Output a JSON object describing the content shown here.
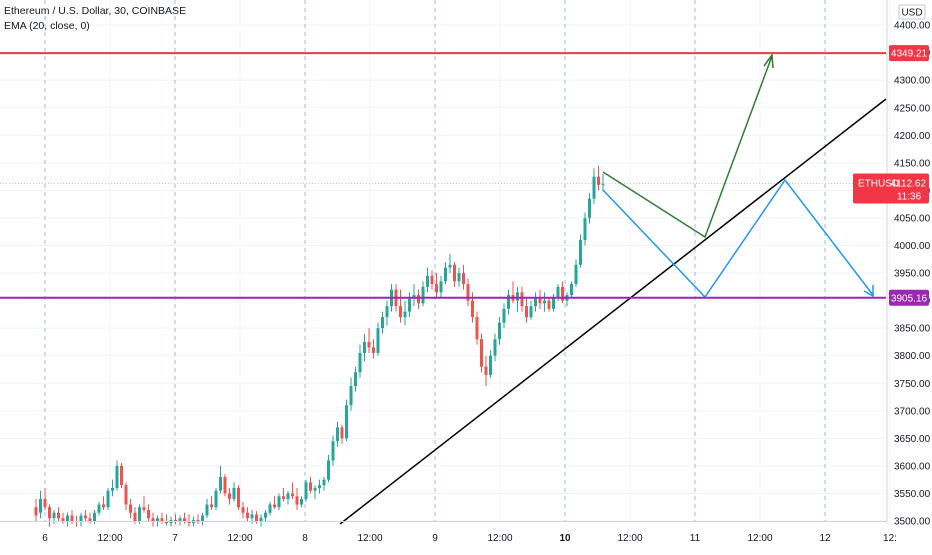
{
  "legend": {
    "symbol_line": "Ethereum / U.S. Dollar, 30, COINBASE",
    "indicator_line": "EMA (20, close, 0)"
  },
  "price_axis": {
    "currency_label": "USD",
    "ticks": [
      "4400.00",
      "4350.00",
      "4300.00",
      "4250.00",
      "4200.00",
      "4150.00",
      "4100.00",
      "4050.00",
      "4000.00",
      "3950.00",
      "3900.00",
      "3850.00",
      "3800.00",
      "3750.00",
      "3700.00",
      "3650.00",
      "3600.00",
      "3550.00",
      "3500.00"
    ]
  },
  "time_axis": {
    "ticks": [
      "6",
      "12:00",
      "7",
      "12:00",
      "8",
      "12:00",
      "9",
      "12:00",
      "10",
      "12:00",
      "11",
      "12:00",
      "12",
      "12:"
    ]
  },
  "price_tags": {
    "resistance": "4349.21",
    "support": "3905.16",
    "current_symbol": "ETHUSD",
    "current_price": "4112.62",
    "countdown": "11:36"
  },
  "colors": {
    "resistance": "#f23645",
    "support": "#9c27b0",
    "up": "#26a69a",
    "down": "#ef5350",
    "green_path": "#2e7d32",
    "blue_path": "#2196f3",
    "trendline": "#000000",
    "ema": "#ffffff"
  },
  "chart_data": {
    "type": "candlestick",
    "symbol": "Ethereum / U.S. Dollar",
    "interval": "30",
    "exchange": "COINBASE",
    "indicator": "EMA (20, close, 0)",
    "ylim": [
      3490,
      4430
    ],
    "x_ticks": [
      "6",
      "12:00",
      "7",
      "12:00",
      "8",
      "12:00",
      "9",
      "12:00",
      "10",
      "12:00",
      "11",
      "12:00",
      "12",
      "12:"
    ],
    "horizontal_lines": [
      {
        "price": 4349.21,
        "color": "#f23645"
      },
      {
        "price": 3905.16,
        "color": "#9c27b0"
      },
      {
        "price": 4112.62,
        "color": "#f23645",
        "style": "dotted"
      }
    ],
    "candles_ohlc": [
      [
        3525,
        3540,
        3500,
        3510
      ],
      [
        3515,
        3555,
        3505,
        3540
      ],
      [
        3540,
        3560,
        3520,
        3525
      ],
      [
        3525,
        3530,
        3490,
        3505
      ],
      [
        3505,
        3520,
        3495,
        3515
      ],
      [
        3515,
        3525,
        3500,
        3505
      ],
      [
        3505,
        3515,
        3495,
        3500
      ],
      [
        3500,
        3515,
        3490,
        3510
      ],
      [
        3510,
        3520,
        3495,
        3500
      ],
      [
        3500,
        3510,
        3490,
        3498
      ],
      [
        3498,
        3515,
        3490,
        3510
      ],
      [
        3510,
        3520,
        3498,
        3505
      ],
      [
        3505,
        3515,
        3495,
        3500
      ],
      [
        3500,
        3520,
        3495,
        3515
      ],
      [
        3515,
        3535,
        3510,
        3530
      ],
      [
        3530,
        3545,
        3520,
        3525
      ],
      [
        3525,
        3560,
        3520,
        3555
      ],
      [
        3555,
        3575,
        3545,
        3560
      ],
      [
        3560,
        3610,
        3555,
        3600
      ],
      [
        3600,
        3605,
        3560,
        3565
      ],
      [
        3565,
        3570,
        3520,
        3530
      ],
      [
        3530,
        3540,
        3505,
        3515
      ],
      [
        3515,
        3525,
        3495,
        3500
      ],
      [
        3500,
        3530,
        3495,
        3525
      ],
      [
        3525,
        3545,
        3515,
        3520
      ],
      [
        3520,
        3530,
        3500,
        3505
      ],
      [
        3505,
        3515,
        3490,
        3498
      ],
      [
        3498,
        3510,
        3490,
        3505
      ],
      [
        3505,
        3515,
        3495,
        3500
      ],
      [
        3500,
        3512,
        3492,
        3496
      ],
      [
        3496,
        3508,
        3490,
        3502
      ],
      [
        3502,
        3512,
        3494,
        3498
      ],
      [
        3498,
        3510,
        3492,
        3505
      ],
      [
        3505,
        3515,
        3495,
        3500
      ],
      [
        3500,
        3512,
        3490,
        3496
      ],
      [
        3496,
        3508,
        3490,
        3502
      ],
      [
        3502,
        3512,
        3495,
        3498
      ],
      [
        3498,
        3515,
        3492,
        3510
      ],
      [
        3510,
        3540,
        3505,
        3530
      ],
      [
        3530,
        3545,
        3520,
        3525
      ],
      [
        3525,
        3560,
        3520,
        3555
      ],
      [
        3555,
        3600,
        3550,
        3580
      ],
      [
        3580,
        3585,
        3545,
        3550
      ],
      [
        3550,
        3560,
        3530,
        3540
      ],
      [
        3540,
        3570,
        3535,
        3560
      ],
      [
        3560,
        3565,
        3520,
        3525
      ],
      [
        3525,
        3535,
        3505,
        3515
      ],
      [
        3515,
        3525,
        3500,
        3505
      ],
      [
        3505,
        3520,
        3495,
        3512
      ],
      [
        3512,
        3518,
        3495,
        3500
      ],
      [
        3500,
        3512,
        3490,
        3506
      ],
      [
        3506,
        3520,
        3500,
        3515
      ],
      [
        3515,
        3535,
        3510,
        3530
      ],
      [
        3530,
        3545,
        3522,
        3525
      ],
      [
        3525,
        3550,
        3520,
        3545
      ],
      [
        3545,
        3560,
        3535,
        3540
      ],
      [
        3540,
        3555,
        3530,
        3550
      ],
      [
        3550,
        3570,
        3540,
        3545
      ],
      [
        3545,
        3560,
        3520,
        3530
      ],
      [
        3530,
        3545,
        3525,
        3540
      ],
      [
        3540,
        3575,
        3535,
        3570
      ],
      [
        3570,
        3580,
        3550,
        3555
      ],
      [
        3555,
        3565,
        3540,
        3560
      ],
      [
        3560,
        3575,
        3550,
        3565
      ],
      [
        3565,
        3580,
        3555,
        3575
      ],
      [
        3575,
        3620,
        3570,
        3610
      ],
      [
        3610,
        3655,
        3600,
        3645
      ],
      [
        3645,
        3680,
        3635,
        3670
      ],
      [
        3670,
        3675,
        3640,
        3650
      ],
      [
        3650,
        3720,
        3645,
        3710
      ],
      [
        3710,
        3760,
        3700,
        3745
      ],
      [
        3745,
        3780,
        3735,
        3770
      ],
      [
        3770,
        3820,
        3760,
        3805
      ],
      [
        3805,
        3840,
        3790,
        3825
      ],
      [
        3825,
        3850,
        3805,
        3815
      ],
      [
        3815,
        3830,
        3795,
        3805
      ],
      [
        3805,
        3860,
        3800,
        3850
      ],
      [
        3850,
        3880,
        3840,
        3870
      ],
      [
        3870,
        3900,
        3855,
        3890
      ],
      [
        3890,
        3930,
        3880,
        3920
      ],
      [
        3920,
        3930,
        3880,
        3890
      ],
      [
        3890,
        3920,
        3860,
        3870
      ],
      [
        3870,
        3900,
        3855,
        3880
      ],
      [
        3880,
        3915,
        3870,
        3905
      ],
      [
        3905,
        3930,
        3890,
        3910
      ],
      [
        3910,
        3920,
        3885,
        3895
      ],
      [
        3895,
        3935,
        3890,
        3925
      ],
      [
        3925,
        3960,
        3915,
        3945
      ],
      [
        3945,
        3955,
        3920,
        3930
      ],
      [
        3930,
        3950,
        3905,
        3915
      ],
      [
        3915,
        3945,
        3905,
        3935
      ],
      [
        3935,
        3970,
        3930,
        3960
      ],
      [
        3960,
        3985,
        3950,
        3965
      ],
      [
        3965,
        3970,
        3925,
        3935
      ],
      [
        3935,
        3960,
        3925,
        3950
      ],
      [
        3950,
        3965,
        3920,
        3930
      ],
      [
        3930,
        3940,
        3890,
        3900
      ],
      [
        3900,
        3915,
        3860,
        3870
      ],
      [
        3870,
        3880,
        3820,
        3830
      ],
      [
        3830,
        3840,
        3770,
        3780
      ],
      [
        3780,
        3800,
        3745,
        3765
      ],
      [
        3765,
        3810,
        3760,
        3800
      ],
      [
        3800,
        3840,
        3790,
        3830
      ],
      [
        3830,
        3870,
        3820,
        3860
      ],
      [
        3860,
        3895,
        3850,
        3885
      ],
      [
        3885,
        3920,
        3875,
        3910
      ],
      [
        3910,
        3935,
        3895,
        3900
      ],
      [
        3900,
        3925,
        3880,
        3915
      ],
      [
        3915,
        3925,
        3880,
        3890
      ],
      [
        3890,
        3905,
        3860,
        3870
      ],
      [
        3870,
        3900,
        3865,
        3890
      ],
      [
        3890,
        3915,
        3880,
        3905
      ],
      [
        3905,
        3920,
        3885,
        3895
      ],
      [
        3895,
        3915,
        3880,
        3900
      ],
      [
        3900,
        3905,
        3880,
        3885
      ],
      [
        3885,
        3912,
        3880,
        3905
      ],
      [
        3905,
        3930,
        3900,
        3925
      ],
      [
        3925,
        3935,
        3895,
        3900
      ],
      [
        3900,
        3915,
        3890,
        3910
      ],
      [
        3910,
        3935,
        3905,
        3930
      ],
      [
        3930,
        3975,
        3925,
        3965
      ],
      [
        3965,
        4020,
        3960,
        4010
      ],
      [
        4010,
        4060,
        4000,
        4050
      ],
      [
        4050,
        4095,
        4040,
        4085
      ],
      [
        4085,
        4140,
        4075,
        4125
      ],
      [
        4125,
        4145,
        4100,
        4110
      ],
      [
        4110,
        4130,
        4098,
        4112
      ]
    ]
  }
}
